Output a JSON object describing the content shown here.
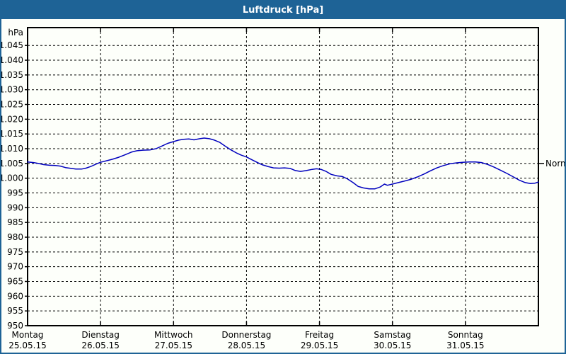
{
  "window": {
    "title": "Luftdruck [hPa]"
  },
  "colors": {
    "titlebar": "#1E6396",
    "window_border": "#1E6396",
    "background": "#FDFFFA",
    "axis": "#000000",
    "grid": "#000000",
    "text": "#000000",
    "curve": "#0000BE"
  },
  "chart_data": {
    "type": "line",
    "title": "Luftdruck [hPa]",
    "unit_label": "hPa",
    "grid": "dashed",
    "legend_position": "none",
    "y_axis": {
      "min": 950,
      "max": 1051,
      "tick_step": 5,
      "ticks": [
        {
          "value": 1045,
          "label": "1.045"
        },
        {
          "value": 1040,
          "label": "1.040"
        },
        {
          "value": 1035,
          "label": "1.035"
        },
        {
          "value": 1030,
          "label": "1.030"
        },
        {
          "value": 1025,
          "label": "1.025"
        },
        {
          "value": 1020,
          "label": "1.020"
        },
        {
          "value": 1015,
          "label": "1.015"
        },
        {
          "value": 1010,
          "label": "1.010"
        },
        {
          "value": 1005,
          "label": "1.005"
        },
        {
          "value": 1000,
          "label": "1.000"
        },
        {
          "value": 995,
          "label": "995"
        },
        {
          "value": 990,
          "label": "990"
        },
        {
          "value": 985,
          "label": "985"
        },
        {
          "value": 980,
          "label": "980"
        },
        {
          "value": 975,
          "label": "975"
        },
        {
          "value": 970,
          "label": "970"
        },
        {
          "value": 965,
          "label": "965"
        },
        {
          "value": 960,
          "label": "960"
        },
        {
          "value": 955,
          "label": "955"
        },
        {
          "value": 950,
          "label": "950"
        }
      ]
    },
    "x_axis": {
      "days": [
        {
          "name": "Montag",
          "date": "25.05.15"
        },
        {
          "name": "Dienstag",
          "date": "26.05.15"
        },
        {
          "name": "Mittwoch",
          "date": "27.05.15"
        },
        {
          "name": "Donnerstag",
          "date": "28.05.15"
        },
        {
          "name": "Freitag",
          "date": "29.05.15"
        },
        {
          "name": "Samstag",
          "date": "30.05.15"
        },
        {
          "name": "Sonntag",
          "date": "31.05.15"
        }
      ]
    },
    "normal_marker": {
      "label": "Normal",
      "value": 1005
    },
    "series": [
      {
        "name": "Luftdruck",
        "unit": "hPa",
        "points": [
          [
            0.0,
            1005.5
          ],
          [
            0.08,
            1005.3
          ],
          [
            0.15,
            1005.0
          ],
          [
            0.22,
            1004.6
          ],
          [
            0.3,
            1004.4
          ],
          [
            0.38,
            1004.3
          ],
          [
            0.45,
            1004.1
          ],
          [
            0.52,
            1003.6
          ],
          [
            0.6,
            1003.3
          ],
          [
            0.66,
            1003.1
          ],
          [
            0.74,
            1003.1
          ],
          [
            0.8,
            1003.4
          ],
          [
            0.87,
            1004.0
          ],
          [
            0.94,
            1004.8
          ],
          [
            1.0,
            1005.4
          ],
          [
            1.08,
            1005.9
          ],
          [
            1.16,
            1006.4
          ],
          [
            1.25,
            1007.1
          ],
          [
            1.34,
            1008.0
          ],
          [
            1.43,
            1008.9
          ],
          [
            1.5,
            1009.3
          ],
          [
            1.58,
            1009.5
          ],
          [
            1.68,
            1009.6
          ],
          [
            1.76,
            1010.0
          ],
          [
            1.84,
            1010.9
          ],
          [
            1.92,
            1011.8
          ],
          [
            2.0,
            1012.4
          ],
          [
            2.07,
            1012.9
          ],
          [
            2.14,
            1013.2
          ],
          [
            2.21,
            1013.3
          ],
          [
            2.28,
            1013.0
          ],
          [
            2.36,
            1013.4
          ],
          [
            2.42,
            1013.6
          ],
          [
            2.49,
            1013.4
          ],
          [
            2.56,
            1012.9
          ],
          [
            2.63,
            1012.2
          ],
          [
            2.7,
            1011.0
          ],
          [
            2.78,
            1009.7
          ],
          [
            2.86,
            1008.6
          ],
          [
            2.93,
            1007.8
          ],
          [
            3.0,
            1007.2
          ],
          [
            3.07,
            1006.3
          ],
          [
            3.15,
            1005.3
          ],
          [
            3.22,
            1004.5
          ],
          [
            3.3,
            1003.9
          ],
          [
            3.37,
            1003.5
          ],
          [
            3.45,
            1003.4
          ],
          [
            3.52,
            1003.5
          ],
          [
            3.6,
            1003.3
          ],
          [
            3.67,
            1002.6
          ],
          [
            3.74,
            1002.3
          ],
          [
            3.82,
            1002.6
          ],
          [
            3.9,
            1003.0
          ],
          [
            3.96,
            1003.2
          ],
          [
            4.02,
            1003.0
          ],
          [
            4.09,
            1002.3
          ],
          [
            4.16,
            1001.3
          ],
          [
            4.24,
            1000.8
          ],
          [
            4.31,
            1000.6
          ],
          [
            4.38,
            999.8
          ],
          [
            4.46,
            998.5
          ],
          [
            4.53,
            997.2
          ],
          [
            4.6,
            996.7
          ],
          [
            4.68,
            996.4
          ],
          [
            4.76,
            996.4
          ],
          [
            4.83,
            997.0
          ],
          [
            4.89,
            998.0
          ],
          [
            4.93,
            997.6
          ],
          [
            5.0,
            998.0
          ],
          [
            5.08,
            998.5
          ],
          [
            5.16,
            999.0
          ],
          [
            5.25,
            999.6
          ],
          [
            5.34,
            1000.4
          ],
          [
            5.43,
            1001.4
          ],
          [
            5.52,
            1002.5
          ],
          [
            5.61,
            1003.5
          ],
          [
            5.7,
            1004.3
          ],
          [
            5.79,
            1004.9
          ],
          [
            5.88,
            1005.2
          ],
          [
            5.96,
            1005.4
          ],
          [
            6.05,
            1005.5
          ],
          [
            6.14,
            1005.5
          ],
          [
            6.22,
            1005.3
          ],
          [
            6.3,
            1004.7
          ],
          [
            6.39,
            1003.8
          ],
          [
            6.48,
            1002.7
          ],
          [
            6.57,
            1001.6
          ],
          [
            6.66,
            1000.4
          ],
          [
            6.74,
            999.3
          ],
          [
            6.82,
            998.5
          ],
          [
            6.89,
            998.2
          ],
          [
            6.95,
            998.3
          ],
          [
            7.0,
            998.7
          ]
        ]
      }
    ]
  }
}
